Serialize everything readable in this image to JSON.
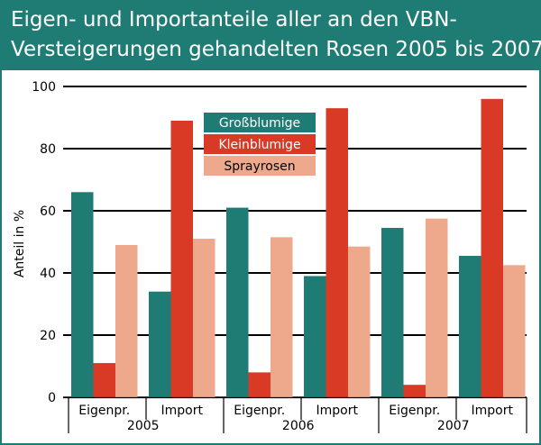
{
  "title_lines": [
    "Eigen- und Importanteile aller an den VBN-",
    "Versteigerungen gehandelten Rosen 2005 bis 2007"
  ],
  "chart_data": {
    "type": "bar",
    "title": "Eigen- und Importanteile aller an den VBN-Versteigerungen gehandelten Rosen 2005 bis 2007",
    "ylabel": "Anteil in %",
    "xlabel": "",
    "ylim": [
      0,
      100
    ],
    "yticks": [
      0,
      20,
      40,
      60,
      80,
      100
    ],
    "grid": true,
    "legend_position": "top-center",
    "categories": [
      "Eigenpr.",
      "Import",
      "Eigenpr.",
      "Import",
      "Eigenpr.",
      "Import"
    ],
    "groups": [
      {
        "label": "2005",
        "categories": [
          "Eigenpr.",
          "Import"
        ]
      },
      {
        "label": "2006",
        "categories": [
          "Eigenpr.",
          "Import"
        ]
      },
      {
        "label": "2007",
        "categories": [
          "Eigenpr.",
          "Import"
        ]
      }
    ],
    "series": [
      {
        "name": "Großblumige",
        "color": "#1e7c74",
        "values": [
          66,
          34,
          61,
          39,
          54.5,
          45.5
        ]
      },
      {
        "name": "Kleinblumige",
        "color": "#d93a25",
        "values": [
          11,
          89,
          8,
          93,
          4,
          96
        ]
      },
      {
        "name": "Sprayrosen",
        "color": "#eea98d",
        "values": [
          49,
          51,
          51.5,
          48.5,
          57.5,
          42.5
        ]
      }
    ]
  }
}
